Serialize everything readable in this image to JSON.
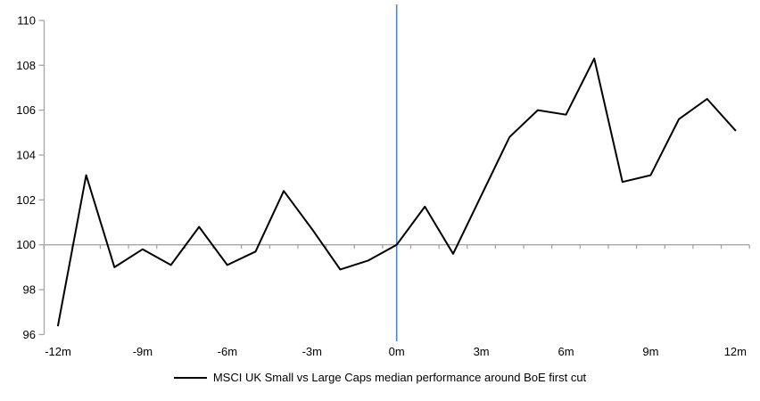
{
  "chart_data": {
    "type": "line",
    "title": "",
    "x_months": [
      -12,
      -11,
      -10,
      -9,
      -8,
      -7,
      -6,
      -5,
      -4,
      -3,
      -2,
      -1,
      0,
      1,
      2,
      3,
      4,
      5,
      6,
      7,
      8,
      9,
      10,
      11,
      12
    ],
    "series": [
      {
        "name": "MSCI UK Small vs Large Caps median performance around BoE first cut",
        "values": [
          96.4,
          103.1,
          99.0,
          99.8,
          99.1,
          100.8,
          99.1,
          99.7,
          102.4,
          100.7,
          98.9,
          99.3,
          100.0,
          101.7,
          99.6,
          102.2,
          104.8,
          106.0,
          105.8,
          108.3,
          102.8,
          103.1,
          105.6,
          106.5,
          105.1
        ]
      }
    ],
    "xlabel": "",
    "ylabel": "",
    "ylim": [
      96,
      110
    ],
    "ytick_step": 2,
    "yticks": [
      "96",
      "98",
      "100",
      "102",
      "104",
      "106",
      "108",
      "110"
    ],
    "xticks": [
      {
        "label": "-12m",
        "month": -12
      },
      {
        "label": "-9m",
        "month": -9
      },
      {
        "label": "-6m",
        "month": -6
      },
      {
        "label": "-3m",
        "month": -3
      },
      {
        "label": "0m",
        "month": 0
      },
      {
        "label": "3m",
        "month": 3
      },
      {
        "label": "6m",
        "month": 6
      },
      {
        "label": "9m",
        "month": 9
      },
      {
        "label": "12m",
        "month": 12
      }
    ],
    "baseline_value": 100,
    "event_line_month": 0,
    "grid": "off",
    "legend_position": "bottom-center",
    "colors": {
      "series": "#000000",
      "event_line": "#4F86C6",
      "axis": "#A6A6A6",
      "text": "#000000",
      "background": "#FFFFFF"
    }
  },
  "legend": {
    "label": "MSCI UK Small vs Large Caps median performance around BoE first cut"
  }
}
